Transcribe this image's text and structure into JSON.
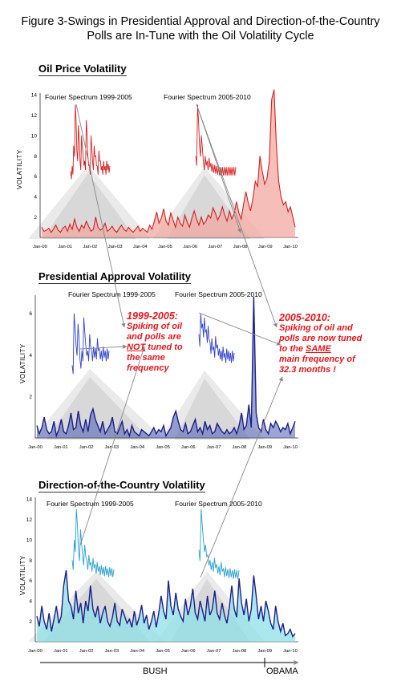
{
  "figure": {
    "title_line1": "Figure 3-Swings in Presidential Approval and Direction-of-the-Country",
    "title_line2": "Polls are In-Tune with the Oil Volatility Cycle"
  },
  "annotations": {
    "left_head": "1999-2005:",
    "left_lines": [
      "Spiking of oil",
      "and polls are"
    ],
    "left_not": "NOT",
    "left_tail1": " tuned to",
    "left_tail2": "the same",
    "left_tail3": "frequency",
    "right_head": "2005-2010:",
    "right_lines": [
      "Spiking of oil and",
      "polls are now tuned"
    ],
    "right_to_the": "to the ",
    "right_same": "SAME",
    "right_tail1": "main frequency of",
    "right_tail2": "32.3 months !"
  },
  "eras": {
    "bush": "BUSH",
    "obama": "OBAMA"
  },
  "colors": {
    "oil_line": "#d62020",
    "oil_fill": "#f2a8a0",
    "approval_line": "#1a1f8a",
    "approval_fill": "#4a5bb0",
    "direction_line": "#1a1f8a",
    "direction_fill": "#8ee0e8",
    "spectrum_approval": "#3344cc",
    "spectrum_direction": "#2aa0d0",
    "annotation": "#e8141c"
  },
  "chart_data": [
    {
      "type": "area",
      "title": "Oil Price Volatility",
      "ylabel": "VOLATILITY",
      "ylim": [
        0,
        14
      ],
      "yticks": [
        2,
        4,
        6,
        8,
        10,
        12,
        14
      ],
      "x_ticklabels": [
        "Jan-00",
        "Jan-01",
        "Jan-02",
        "Jan-03",
        "Jan-04",
        "Jan-05",
        "Jan-06",
        "Jan-07",
        "Jan-08",
        "Jan-09",
        "Jan-10"
      ],
      "values": [
        1.0,
        0.6,
        0.7,
        0.9,
        0.5,
        0.8,
        1.2,
        0.7,
        0.5,
        0.9,
        1.1,
        0.6,
        1.3,
        0.8,
        1.8,
        1.0,
        0.6,
        1.2,
        0.9,
        1.6,
        1.1,
        0.6,
        0.8,
        2.0,
        1.0,
        0.7,
        0.9,
        1.4,
        0.6,
        0.8,
        1.1,
        0.7,
        0.5,
        0.9,
        1.2,
        0.8,
        0.6,
        1.0,
        0.7,
        0.5,
        0.8,
        1.1,
        0.6,
        0.9,
        0.7,
        0.5,
        1.2,
        0.8,
        1.6,
        2.5,
        1.4,
        1.9,
        2.8,
        1.6,
        1.2,
        2.4,
        1.7,
        1.0,
        2.0,
        1.4,
        1.1,
        2.2,
        1.5,
        1.0,
        1.9,
        2.6,
        1.8,
        1.2,
        2.0,
        1.3,
        1.6,
        2.2,
        1.9,
        2.9,
        2.4,
        1.7,
        2.2,
        3.0,
        2.2,
        1.6,
        2.6,
        1.8,
        2.3,
        3.5,
        2.4,
        1.8,
        3.2,
        4.5,
        3.4,
        2.6,
        3.8,
        5.5,
        5.0,
        8.0,
        6.5,
        5.2,
        5.8,
        7.5,
        13.5,
        14.5,
        9.0,
        5.5,
        4.0,
        3.2,
        3.5,
        2.5,
        3.0,
        2.0,
        1.0
      ],
      "spectrum_1999_2005": {
        "label": "Fourier Spectrum 1999-2005",
        "values": [
          6.5,
          7,
          9,
          13,
          8.5,
          11,
          7.5,
          10,
          8,
          7.5,
          11.5,
          8,
          7,
          10,
          7.5,
          9,
          8,
          7,
          8.5,
          7.5,
          7,
          7.5,
          7,
          7.5,
          7.2,
          7
        ]
      },
      "spectrum_2005_2010": {
        "label": "Fourier Spectrum 2005-2010",
        "values": [
          8,
          13,
          9,
          10,
          7.5,
          8,
          7.5,
          7.8,
          7.3,
          7.2,
          7.1,
          7,
          6.9,
          6.9,
          6.9,
          6.9,
          6.9,
          6.9,
          6.9,
          6.9,
          6.9,
          6.9
        ]
      }
    },
    {
      "type": "area",
      "title": "Presidential Approval Volatility",
      "ylabel": "VOLATILITY",
      "ylim": [
        0,
        6.8
      ],
      "yticks": [
        2,
        4,
        6
      ],
      "x_ticklabels": [
        "Jan-00",
        "Jan-01",
        "Jan-02",
        "Jan-03",
        "Jan-04",
        "Jan-05",
        "Jan-06",
        "Jan-07",
        "Jan-08",
        "Jan-09",
        "Jan-10"
      ],
      "values": [
        0.6,
        0.2,
        0.5,
        1.0,
        0.4,
        0.2,
        0.3,
        0.8,
        0.1,
        0.4,
        0.9,
        0.3,
        0.2,
        0.6,
        1.2,
        0.4,
        0.5,
        1.3,
        0.6,
        0.3,
        0.9,
        0.3,
        1.1,
        1.4,
        0.9,
        0.6,
        0.3,
        0.8,
        0.2,
        0.4,
        0.6,
        1.0,
        0.3,
        0.2,
        0.5,
        0.8,
        0.2,
        0.4,
        0.1,
        0.6,
        0.3,
        0.2,
        0.1,
        0.4,
        0.3,
        0.2,
        0.1,
        0.3,
        0.5,
        0.2,
        0.4,
        0.3,
        0.6,
        0.1,
        0.3,
        0.5,
        1.0,
        1.3,
        0.8,
        0.4,
        0.3,
        0.7,
        0.2,
        0.3,
        0.6,
        0.9,
        0.3,
        0.5,
        0.2,
        0.8,
        0.4,
        0.6,
        0.2,
        0.3,
        0.7,
        0.5,
        0.3,
        0.2,
        0.4,
        0.2,
        0.3,
        0.5,
        0.2,
        0.6,
        1.2,
        0.4,
        0.6,
        1.6,
        0.5,
        6.8,
        1.2,
        0.5,
        0.3,
        0.9,
        0.4,
        0.2,
        0.7,
        0.5,
        0.8,
        0.6,
        0.3,
        0.5,
        0.4,
        0.7,
        0.2,
        0.5,
        0.8
      ],
      "spectrum_1999_2005": {
        "label": "Fourier Spectrum 1999-2005",
        "values": [
          3.5,
          6,
          4.5,
          5.5,
          3.8,
          4.2,
          5.8,
          4.5,
          4.2,
          5.0,
          4.2,
          4.4,
          4.3,
          4.8,
          4.3,
          4.2,
          4.4,
          4.2,
          4.3,
          4.2
        ]
      },
      "spectrum_2005_2010": {
        "label": "Fourier Spectrum 2005-2010",
        "values": [
          5,
          6,
          5.5,
          5.8,
          5.2,
          5.4,
          4.6,
          4.8,
          4.4,
          4.9,
          4.5,
          4.3,
          4.2,
          4.4,
          4.1,
          4.3,
          4.2,
          4.1,
          4.2,
          4.1
        ]
      }
    },
    {
      "type": "area",
      "title": "Direction-of-the-Country Volatility",
      "ylabel": "VOLATILITY",
      "ylim": [
        0,
        14
      ],
      "yticks": [
        2,
        4,
        6,
        8,
        10,
        12,
        14
      ],
      "x_ticklabels": [
        "Jan-00",
        "Jan-01",
        "Jan-02",
        "Jan-03",
        "Jan-04",
        "Jan-05",
        "Jan-06",
        "Jan-07",
        "Jan-08",
        "Jan-09",
        "Jan-10"
      ],
      "values": [
        2.5,
        1.5,
        3.5,
        2.0,
        1.2,
        2.8,
        1.0,
        2.2,
        3.5,
        1.8,
        2.5,
        5.5,
        7.0,
        4.0,
        3.5,
        2.2,
        5.0,
        2.8,
        3.8,
        1.8,
        4.0,
        3.0,
        5.5,
        3.2,
        2.4,
        3.5,
        1.8,
        2.8,
        3.5,
        2.0,
        1.5,
        2.4,
        3.8,
        2.0,
        1.6,
        3.2,
        2.5,
        1.8,
        2.2,
        1.4,
        3.0,
        1.6,
        2.4,
        3.6,
        1.8,
        2.6,
        1.2,
        2.0,
        3.0,
        1.4,
        2.8,
        4.5,
        3.0,
        2.2,
        6.0,
        3.5,
        2.6,
        4.8,
        3.2,
        2.5,
        2.0,
        4.2,
        2.6,
        3.5,
        5.2,
        2.8,
        2.2,
        4.0,
        3.0,
        2.0,
        4.5,
        2.6,
        3.2,
        5.0,
        2.8,
        2.2,
        3.8,
        2.6,
        1.8,
        3.4,
        5.5,
        3.2,
        2.4,
        6.2,
        3.8,
        2.6,
        4.2,
        2.0,
        3.2,
        6.5,
        4.5,
        2.2,
        3.5,
        2.0,
        4.0,
        3.0,
        1.8,
        1.2,
        3.5,
        2.0,
        1.0,
        1.8,
        0.6,
        0.8,
        1.2,
        0.5,
        0.8
      ],
      "spectrum_1999_2005": {
        "label": "Fourier Spectrum 1999-2005",
        "values": [
          8,
          10,
          13,
          9,
          11,
          8.5,
          9.5,
          8,
          8.5,
          7.8,
          8.2,
          7.6,
          7.8,
          7.4,
          7.5,
          7.3,
          7.4,
          7.2,
          7.3,
          7.2,
          7.1
        ]
      },
      "spectrum_2005_2010": {
        "label": "Fourier Spectrum 2005-2010",
        "values": [
          9,
          13,
          10,
          9.5,
          8.5,
          8,
          7.8,
          8.2,
          7.6,
          7.4,
          7.8,
          7.2,
          7.3,
          7.1,
          7.2,
          7.0,
          7.1,
          7.0,
          7.0
        ]
      }
    }
  ]
}
